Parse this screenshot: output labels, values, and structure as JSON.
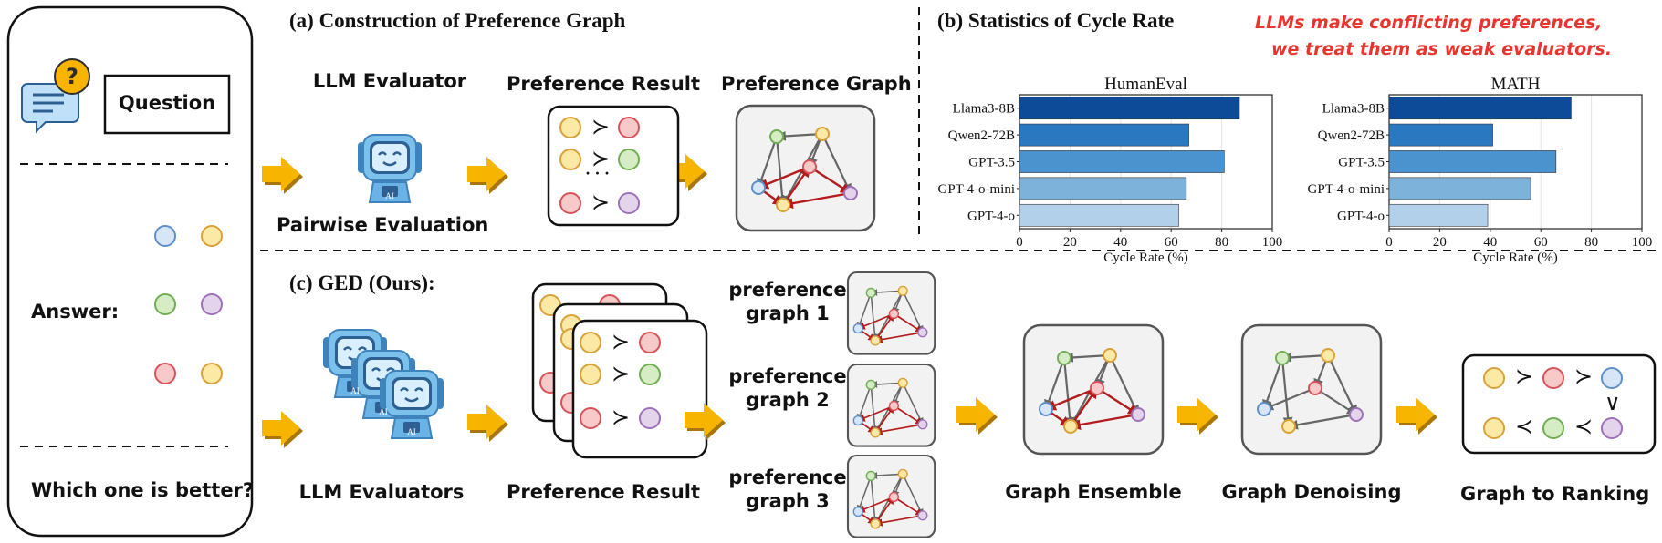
{
  "left_panel": {
    "question": "Question",
    "answer": "Answer:",
    "which_better": "Which one is better?"
  },
  "section_a": {
    "title": "(a) Construction of Preference Graph",
    "evaluator": "LLM Evaluator",
    "pairwise": "Pairwise Evaluation",
    "pref_result": "Preference Result",
    "pref_graph": "Preference Graph",
    "succ": "≻",
    "dots": "· · ·",
    "robot_tag": "AI"
  },
  "section_b": {
    "title": "(b) Statistics of Cycle Rate",
    "note_line1": "LLMs make conflicting preferences,",
    "note_line2": "we treat them as weak evaluators."
  },
  "section_c": {
    "title": "(c) GED (Ours):",
    "evaluators": "LLM Evaluators",
    "pref_result": "Preference Result",
    "graph1_line1": "preference",
    "graph1_line2": "graph 1",
    "graph2_line1": "preference",
    "graph2_line2": "graph 2",
    "graph3_line1": "preference",
    "graph3_line2": "graph 3",
    "ensemble": "Graph Ensemble",
    "denoising": "Graph Denoising",
    "ranking": "Graph to Ranking",
    "succ": "≻",
    "prec": "≺",
    "vee": "∨"
  },
  "chart_data": [
    {
      "type": "bar",
      "orientation": "horizontal",
      "title": "HumanEval",
      "xlabel": "Cycle Rate (%)",
      "categories": [
        "Llama3-8B",
        "Qwen2-72B",
        "GPT-3.5",
        "GPT-4-o-mini",
        "GPT-4-o"
      ],
      "values": [
        87,
        67,
        81,
        66,
        63
      ],
      "xlim": [
        0,
        100
      ],
      "xticks": [
        0,
        20,
        40,
        60,
        80,
        100
      ],
      "grid": "vertical",
      "colors": [
        "#0d4a97",
        "#2a78c0",
        "#4a93cf",
        "#7db3da",
        "#b2d0e9"
      ]
    },
    {
      "type": "bar",
      "orientation": "horizontal",
      "title": "MATH",
      "xlabel": "Cycle Rate (%)",
      "categories": [
        "Llama3-8B",
        "Qwen2-72B",
        "GPT-3.5",
        "GPT-4-o-mini",
        "GPT-4-o"
      ],
      "values": [
        72,
        41,
        66,
        56,
        39
      ],
      "xlim": [
        0,
        100
      ],
      "xticks": [
        0,
        20,
        40,
        60,
        80,
        100
      ],
      "grid": "vertical",
      "colors": [
        "#0d4a97",
        "#2a78c0",
        "#4a93cf",
        "#7db3da",
        "#b2d0e9"
      ]
    }
  ],
  "colors": {
    "arrow_fill": "#f7b500",
    "arrow_dark": "#a9760a",
    "red_text": "#e8352e",
    "edge_gray": "#666666",
    "edge_red": "#b31c1c",
    "graph_bg": "#f2f2f2",
    "robot_blue": "#6ab3e6",
    "node_yellow": "#fde9a6",
    "node_yellow_stroke": "#d9a13a",
    "node_red": "#f7c9c9",
    "node_red_stroke": "#d6535a",
    "node_green": "#d5ecc4",
    "node_green_stroke": "#72ad55",
    "node_purple": "#e3d4ec",
    "node_purple_stroke": "#9d72b8",
    "node_blue": "#d6e6f7",
    "node_blue_stroke": "#5e8fc9"
  },
  "icons": [
    "chat-question-icon",
    "robot-icon",
    "flow-arrow-icon"
  ]
}
